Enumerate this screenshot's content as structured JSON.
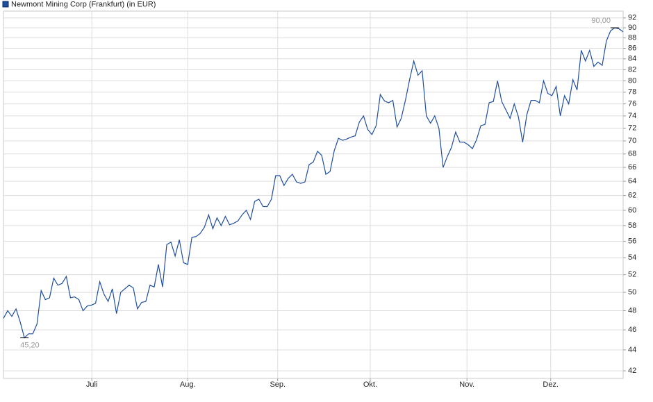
{
  "chart_data": {
    "type": "line",
    "title": "Newmont Mining Corp (Frankfurt) (in EUR)",
    "series": [
      {
        "name": "Newmont Mining Corp (Frankfurt) (in EUR)",
        "color": "#1f4e9c",
        "values": [
          47.2,
          48.0,
          47.4,
          48.2,
          46.8,
          45.2,
          45.6,
          45.6,
          46.6,
          50.2,
          49.2,
          49.4,
          51.6,
          50.8,
          51.0,
          51.8,
          49.4,
          49.5,
          49.2,
          48.0,
          48.5,
          48.6,
          48.8,
          51.2,
          49.8,
          49.0,
          50.4,
          47.7,
          50.0,
          50.4,
          50.8,
          50.5,
          48.2,
          48.9,
          49.0,
          50.8,
          50.6,
          53.2,
          50.6,
          55.6,
          55.9,
          54.2,
          56.2,
          53.4,
          53.2,
          56.5,
          56.6,
          57.0,
          57.8,
          59.4,
          57.6,
          59.0,
          58.0,
          59.2,
          58.1,
          58.3,
          58.6,
          59.4,
          60.0,
          58.8,
          61.2,
          61.5,
          60.5,
          60.5,
          61.5,
          64.8,
          64.8,
          63.4,
          64.4,
          65.0,
          63.9,
          63.7,
          63.9,
          66.4,
          66.8,
          68.4,
          67.8,
          65.0,
          65.4,
          68.5,
          70.4,
          70.1,
          70.3,
          70.6,
          70.8,
          73.0,
          74.0,
          71.8,
          71.0,
          72.4,
          77.6,
          76.5,
          76.2,
          76.6,
          72.2,
          73.6,
          76.6,
          80.2,
          83.6,
          81.0,
          81.8,
          74.0,
          72.8,
          74.0,
          72.0,
          66.0,
          67.6,
          69.0,
          71.4,
          69.8,
          69.8,
          69.4,
          68.8,
          70.2,
          72.4,
          72.6,
          76.2,
          76.4,
          80.0,
          76.4,
          75.0,
          73.6,
          76.0,
          73.8,
          69.8,
          74.2,
          76.6,
          76.6,
          76.2,
          80.0,
          77.8,
          77.4,
          79.0,
          74.0,
          77.4,
          76.0,
          80.2,
          78.4,
          85.6,
          83.6,
          85.6,
          82.6,
          83.4,
          82.8,
          87.4,
          89.4,
          90.0,
          89.8,
          89.2
        ]
      }
    ],
    "xlim": [
      0,
      148
    ],
    "xticks": [
      {
        "value": 21.1,
        "label": "Juli"
      },
      {
        "value": 44,
        "label": "Aug."
      },
      {
        "value": 65.5,
        "label": "Sep."
      },
      {
        "value": 87.6,
        "label": "Okt."
      },
      {
        "value": 110.7,
        "label": "Nov."
      },
      {
        "value": 130.7,
        "label": "Dez."
      }
    ],
    "ylim": [
      41.3,
      93.4
    ],
    "log_scale": true,
    "grid": true,
    "yticks": [
      42,
      44,
      46,
      48,
      50,
      52,
      54,
      56,
      58,
      60,
      62,
      64,
      66,
      68,
      70,
      72,
      74,
      76,
      78,
      80,
      82,
      84,
      86,
      88,
      90,
      92
    ],
    "annotations": [
      {
        "text": "45,20",
        "value": 45.2
      },
      {
        "text": "90,00",
        "value": 90.0
      }
    ]
  }
}
